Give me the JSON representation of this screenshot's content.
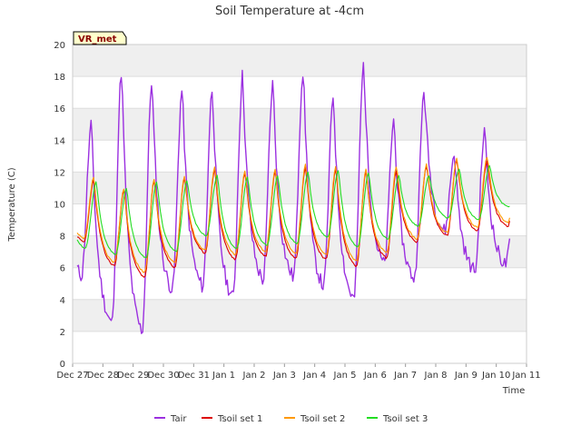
{
  "chart_data": {
    "type": "line",
    "title": "Soil Temperature at -4cm",
    "xlabel": "Time",
    "ylabel": "Temperature (C)",
    "badge": "VR_met",
    "x_ticks": [
      "Dec 27",
      "Dec 28",
      "Dec 29",
      "Dec 30",
      "Dec 31",
      "Jan 1",
      "Jan 2",
      "Jan 3",
      "Jan 4",
      "Jan 5",
      "Jan 6",
      "Jan 7",
      "Jan 8",
      "Jan 9",
      "Jan 10",
      "Jan 11"
    ],
    "y_ticks": [
      0,
      2,
      4,
      6,
      8,
      10,
      12,
      14,
      16,
      18,
      20
    ],
    "ylim": [
      0,
      20
    ],
    "xlim_days": [
      0,
      15
    ],
    "grid": "horizontal bands",
    "legend_position": "bottom",
    "series": [
      {
        "name": "Tair",
        "color": "#9b30e0",
        "daily": [
          {
            "min": 5.5,
            "max": 15.0
          },
          {
            "min": 2.5,
            "max": 18.4
          },
          {
            "min": 2.0,
            "max": 17.8
          },
          {
            "min": 4.6,
            "max": 17.2
          },
          {
            "min": 4.8,
            "max": 17.3
          },
          {
            "min": 4.1,
            "max": 18.1
          },
          {
            "min": 5.2,
            "max": 17.6
          },
          {
            "min": 5.4,
            "max": 18.4
          },
          {
            "min": 4.8,
            "max": 16.9
          },
          {
            "min": 4.0,
            "max": 18.8
          },
          {
            "min": 6.2,
            "max": 15.3
          },
          {
            "min": 5.3,
            "max": 17.2
          },
          {
            "min": 8.3,
            "max": 13.2
          },
          {
            "min": 5.8,
            "max": 14.6
          },
          {
            "min": 6.2,
            "max": null
          }
        ]
      },
      {
        "name": "Tsoil set 1",
        "color": "#dd0000",
        "daily": [
          {
            "min": 7.6,
            "max": 11.5
          },
          {
            "min": 6.1,
            "max": 10.9
          },
          {
            "min": 5.4,
            "max": 11.5
          },
          {
            "min": 6.0,
            "max": 11.7
          },
          {
            "min": 6.9,
            "max": 12.2
          },
          {
            "min": 6.5,
            "max": 12.0
          },
          {
            "min": 6.7,
            "max": 12.1
          },
          {
            "min": 6.6,
            "max": 12.3
          },
          {
            "min": 6.5,
            "max": 12.2
          },
          {
            "min": 6.1,
            "max": 12.1
          },
          {
            "min": 6.6,
            "max": 12.1
          },
          {
            "min": 7.6,
            "max": 12.4
          },
          {
            "min": 8.0,
            "max": 12.8
          },
          {
            "min": 8.3,
            "max": 12.7
          },
          {
            "min": 8.6,
            "max": null
          }
        ]
      },
      {
        "name": "Tsoil set 2",
        "color": "#ff9900",
        "daily": [
          {
            "min": 7.8,
            "max": 11.7
          },
          {
            "min": 6.3,
            "max": 11.0
          },
          {
            "min": 5.7,
            "max": 11.6
          },
          {
            "min": 6.3,
            "max": 11.8
          },
          {
            "min": 7.1,
            "max": 12.4
          },
          {
            "min": 6.8,
            "max": 12.1
          },
          {
            "min": 7.0,
            "max": 12.2
          },
          {
            "min": 6.9,
            "max": 12.5
          },
          {
            "min": 6.8,
            "max": 12.4
          },
          {
            "min": 6.4,
            "max": 12.2
          },
          {
            "min": 6.9,
            "max": 12.4
          },
          {
            "min": 7.8,
            "max": 12.5
          },
          {
            "min": 8.2,
            "max": 12.9
          },
          {
            "min": 8.5,
            "max": 13.0
          },
          {
            "min": 8.8,
            "max": null
          }
        ]
      },
      {
        "name": "Tsoil set 3",
        "color": "#22dd22",
        "daily": [
          {
            "min": 7.2,
            "max": 11.4
          },
          {
            "min": 6.8,
            "max": 11.0
          },
          {
            "min": 6.6,
            "max": 11.4
          },
          {
            "min": 7.0,
            "max": 11.5
          },
          {
            "min": 8.0,
            "max": 11.8
          },
          {
            "min": 7.2,
            "max": 11.7
          },
          {
            "min": 7.4,
            "max": 11.8
          },
          {
            "min": 7.5,
            "max": 12.0
          },
          {
            "min": 7.9,
            "max": 12.1
          },
          {
            "min": 7.3,
            "max": 12.0
          },
          {
            "min": 7.8,
            "max": 11.8
          },
          {
            "min": 8.6,
            "max": 11.8
          },
          {
            "min": 9.1,
            "max": 12.2
          },
          {
            "min": 9.0,
            "max": 12.4
          },
          {
            "min": 9.8,
            "max": null
          }
        ]
      }
    ]
  }
}
